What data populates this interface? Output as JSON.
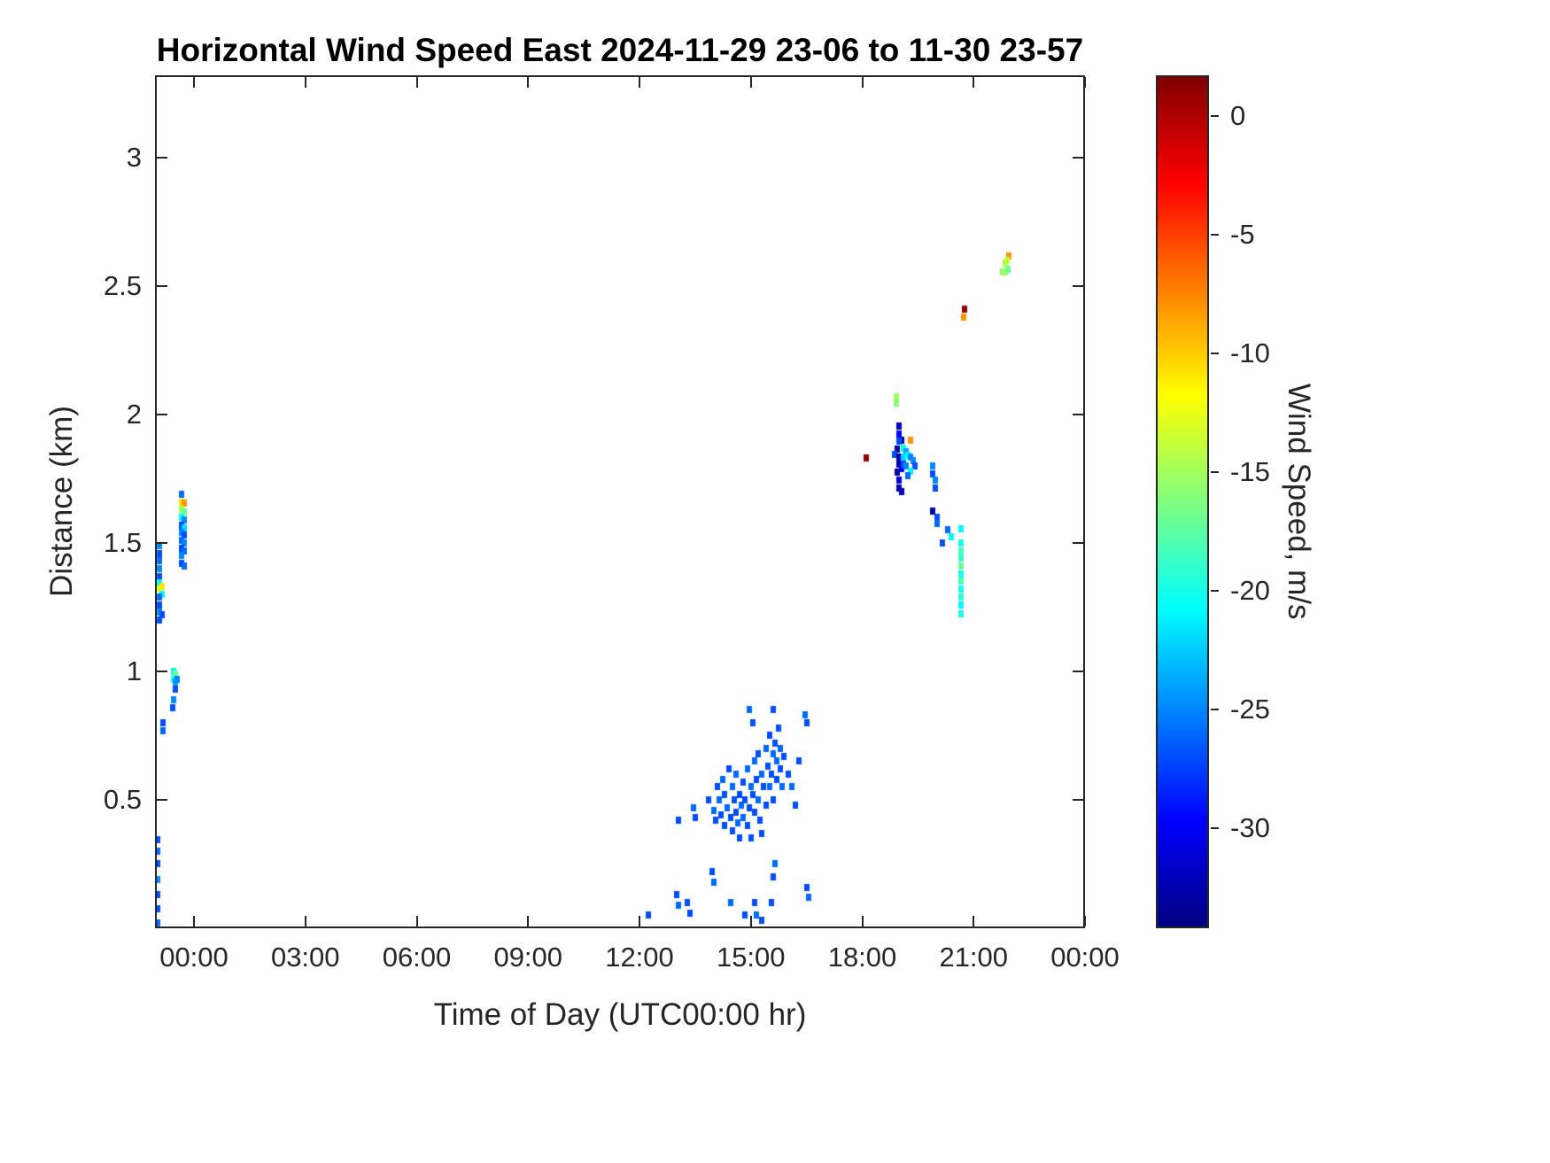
{
  "chart_data": {
    "type": "heatmap",
    "title": "Horizontal Wind Speed East 2024-11-29 23-06 to 11-30 23-57",
    "xlabel": "Time of Day (UTC00:00 hr)",
    "ylabel": "Distance (km)",
    "colorbar_label": "Wind Speed, m/s",
    "grid": false,
    "x_range_hours": [
      -1.05,
      24
    ],
    "y_range_km": [
      0,
      3.32
    ],
    "x_ticks": [
      {
        "hour": 0,
        "label": "00:00"
      },
      {
        "hour": 3,
        "label": "03:00"
      },
      {
        "hour": 6,
        "label": "06:00"
      },
      {
        "hour": 9,
        "label": "09:00"
      },
      {
        "hour": 12,
        "label": "12:00"
      },
      {
        "hour": 15,
        "label": "15:00"
      },
      {
        "hour": 18,
        "label": "18:00"
      },
      {
        "hour": 21,
        "label": "21:00"
      },
      {
        "hour": 24,
        "label": "00:00"
      }
    ],
    "y_ticks": [
      {
        "km": 0.5,
        "label": "0.5"
      },
      {
        "km": 1,
        "label": "1"
      },
      {
        "km": 1.5,
        "label": "1.5"
      },
      {
        "km": 2,
        "label": "2"
      },
      {
        "km": 2.5,
        "label": "2.5"
      },
      {
        "km": 3,
        "label": "3"
      }
    ],
    "colorbar": {
      "colormap": "jet",
      "range_top_to_bottom": [
        1.7,
        -34.2
      ],
      "ticks": [
        {
          "value": 0,
          "label": "0"
        },
        {
          "value": -5,
          "label": "-5"
        },
        {
          "value": -10,
          "label": "-10"
        },
        {
          "value": -15,
          "label": "-15"
        },
        {
          "value": -20,
          "label": "-20"
        },
        {
          "value": -25,
          "label": "-25"
        },
        {
          "value": -30,
          "label": "-30"
        }
      ]
    },
    "points_format": [
      "time_hour",
      "distance_km",
      "wind_speed_ms"
    ],
    "points": [
      [
        -0.93,
        1.49,
        -25
      ],
      [
        -0.93,
        1.46,
        -27
      ],
      [
        -0.93,
        1.43,
        -26
      ],
      [
        -0.93,
        1.4,
        -25
      ],
      [
        -0.93,
        1.37,
        -27
      ],
      [
        -0.93,
        1.345,
        -21
      ],
      [
        -0.93,
        1.32,
        -13
      ],
      [
        -0.86,
        1.33,
        -11
      ],
      [
        -0.86,
        1.3,
        -21
      ],
      [
        -0.93,
        1.29,
        -26
      ],
      [
        -0.93,
        1.26,
        -27
      ],
      [
        -0.93,
        1.23,
        -25
      ],
      [
        -0.93,
        1.2,
        -27
      ],
      [
        -0.86,
        1.22,
        -27
      ],
      [
        -0.97,
        0.345,
        -27
      ],
      [
        -0.97,
        0.3,
        -26
      ],
      [
        -0.97,
        0.25,
        -27
      ],
      [
        -0.97,
        0.19,
        -25
      ],
      [
        -0.97,
        0.13,
        -27
      ],
      [
        -0.97,
        0.075,
        -27
      ],
      [
        -0.97,
        0.02,
        -26
      ],
      [
        -0.83,
        0.8,
        -27
      ],
      [
        -0.83,
        0.77,
        -26
      ],
      [
        -0.57,
        0.86,
        -27
      ],
      [
        -0.55,
        0.89,
        -25
      ],
      [
        -0.55,
        1.0,
        -21
      ],
      [
        -0.5,
        0.99,
        -17
      ],
      [
        -0.55,
        0.97,
        -20
      ],
      [
        -0.5,
        0.96,
        -24
      ],
      [
        -0.45,
        0.97,
        -25
      ],
      [
        -0.5,
        0.93,
        -27
      ],
      [
        -0.33,
        1.69,
        -26
      ],
      [
        -0.33,
        1.66,
        -11
      ],
      [
        -0.26,
        1.655,
        -8
      ],
      [
        -0.33,
        1.63,
        -15
      ],
      [
        -0.26,
        1.62,
        -17
      ],
      [
        -0.33,
        1.6,
        -21
      ],
      [
        -0.26,
        1.59,
        -25
      ],
      [
        -0.33,
        1.57,
        -27
      ],
      [
        -0.26,
        1.56,
        -22
      ],
      [
        -0.33,
        1.54,
        -25
      ],
      [
        -0.26,
        1.53,
        -27
      ],
      [
        -0.33,
        1.51,
        -26
      ],
      [
        -0.26,
        1.5,
        -25
      ],
      [
        -0.33,
        1.48,
        -27
      ],
      [
        -0.26,
        1.47,
        -26
      ],
      [
        -0.33,
        1.45,
        -25
      ],
      [
        -0.33,
        1.42,
        -27
      ],
      [
        -0.26,
        1.41,
        -26
      ],
      [
        12.25,
        0.05,
        -27
      ],
      [
        13.0,
        0.13,
        -27
      ],
      [
        13.05,
        0.09,
        -26
      ],
      [
        13.3,
        0.1,
        -27
      ],
      [
        13.35,
        0.06,
        -27
      ],
      [
        13.95,
        0.22,
        -27
      ],
      [
        14.0,
        0.18,
        -26
      ],
      [
        14.45,
        0.1,
        -26
      ],
      [
        14.85,
        0.05,
        -27
      ],
      [
        15.1,
        0.1,
        -27
      ],
      [
        15.15,
        0.05,
        -26
      ],
      [
        15.3,
        0.03,
        -27
      ],
      [
        15.55,
        0.1,
        -27
      ],
      [
        15.6,
        0.2,
        -27
      ],
      [
        15.65,
        0.25,
        -26
      ],
      [
        16.5,
        0.16,
        -27
      ],
      [
        16.55,
        0.12,
        -26
      ],
      [
        13.05,
        0.42,
        -27
      ],
      [
        13.45,
        0.47,
        -26
      ],
      [
        13.5,
        0.43,
        -27
      ],
      [
        13.85,
        0.5,
        -27
      ],
      [
        14.0,
        0.46,
        -26
      ],
      [
        14.05,
        0.42,
        -27
      ],
      [
        14.1,
        0.55,
        -27
      ],
      [
        14.15,
        0.5,
        -26
      ],
      [
        14.2,
        0.44,
        -27
      ],
      [
        14.25,
        0.58,
        -26
      ],
      [
        14.3,
        0.4,
        -27
      ],
      [
        14.3,
        0.52,
        -27
      ],
      [
        14.35,
        0.47,
        -26
      ],
      [
        14.4,
        0.62,
        -27
      ],
      [
        14.45,
        0.43,
        -27
      ],
      [
        14.5,
        0.55,
        -26
      ],
      [
        14.5,
        0.38,
        -27
      ],
      [
        14.55,
        0.5,
        -27
      ],
      [
        14.6,
        0.6,
        -26
      ],
      [
        14.6,
        0.45,
        -27
      ],
      [
        14.65,
        0.41,
        -26
      ],
      [
        14.7,
        0.52,
        -27
      ],
      [
        14.7,
        0.35,
        -27
      ],
      [
        14.75,
        0.48,
        -26
      ],
      [
        14.8,
        0.57,
        -27
      ],
      [
        14.8,
        0.43,
        -26
      ],
      [
        14.85,
        0.5,
        -27
      ],
      [
        14.9,
        0.62,
        -26
      ],
      [
        14.9,
        0.4,
        -27
      ],
      [
        14.95,
        0.47,
        -27
      ],
      [
        15.0,
        0.55,
        -26
      ],
      [
        15.0,
        0.35,
        -27
      ],
      [
        15.05,
        0.52,
        -27
      ],
      [
        15.05,
        0.8,
        -27
      ],
      [
        15.1,
        0.65,
        -26
      ],
      [
        15.1,
        0.45,
        -27
      ],
      [
        15.15,
        0.58,
        -27
      ],
      [
        15.2,
        0.5,
        -26
      ],
      [
        15.2,
        0.68,
        -27
      ],
      [
        15.25,
        0.42,
        -27
      ],
      [
        15.3,
        0.6,
        -26
      ],
      [
        15.3,
        0.37,
        -27
      ],
      [
        15.35,
        0.55,
        -27
      ],
      [
        15.4,
        0.7,
        -26
      ],
      [
        15.4,
        0.48,
        -27
      ],
      [
        15.45,
        0.63,
        -27
      ],
      [
        15.5,
        0.55,
        -26
      ],
      [
        15.5,
        0.75,
        -27
      ],
      [
        15.55,
        0.6,
        -27
      ],
      [
        15.6,
        0.68,
        -26
      ],
      [
        15.6,
        0.5,
        -27
      ],
      [
        15.65,
        0.72,
        -27
      ],
      [
        15.7,
        0.65,
        -26
      ],
      [
        15.7,
        0.58,
        -27
      ],
      [
        15.75,
        0.78,
        -27
      ],
      [
        15.8,
        0.7,
        -26
      ],
      [
        15.8,
        0.62,
        -27
      ],
      [
        15.85,
        0.55,
        -26
      ],
      [
        15.9,
        0.67,
        -27
      ],
      [
        16.0,
        0.6,
        -27
      ],
      [
        16.1,
        0.55,
        -26
      ],
      [
        16.2,
        0.48,
        -27
      ],
      [
        16.3,
        0.65,
        -27
      ],
      [
        16.45,
        0.83,
        -26
      ],
      [
        16.5,
        0.8,
        -27
      ],
      [
        15.6,
        0.85,
        -27
      ],
      [
        14.95,
        0.85,
        -26
      ],
      [
        18.1,
        1.83,
        1
      ],
      [
        18.92,
        2.07,
        -15
      ],
      [
        18.92,
        2.045,
        -16
      ],
      [
        19.0,
        1.955,
        -32
      ],
      [
        19.0,
        1.925,
        -30
      ],
      [
        19.06,
        1.9,
        -33
      ],
      [
        19.0,
        1.895,
        -27
      ],
      [
        18.94,
        1.865,
        -33
      ],
      [
        19.12,
        1.87,
        -21
      ],
      [
        19.18,
        1.855,
        -24
      ],
      [
        18.88,
        1.845,
        -27
      ],
      [
        19.0,
        1.835,
        -33
      ],
      [
        19.06,
        1.82,
        -30
      ],
      [
        19.12,
        1.835,
        -22
      ],
      [
        19.24,
        1.84,
        -21
      ],
      [
        19.3,
        1.835,
        -25
      ],
      [
        19.0,
        1.805,
        -33
      ],
      [
        19.06,
        1.79,
        -30
      ],
      [
        19.12,
        1.805,
        -27
      ],
      [
        19.18,
        1.8,
        -25
      ],
      [
        18.94,
        1.775,
        -33
      ],
      [
        19.0,
        1.745,
        -31
      ],
      [
        19.0,
        1.715,
        -33
      ],
      [
        19.06,
        1.7,
        -32
      ],
      [
        19.3,
        1.9,
        -8
      ],
      [
        19.36,
        1.82,
        -25
      ],
      [
        19.42,
        1.8,
        -27
      ],
      [
        19.3,
        1.78,
        -21
      ],
      [
        19.24,
        1.76,
        -26
      ],
      [
        19.9,
        1.8,
        -25
      ],
      [
        19.9,
        1.77,
        -27
      ],
      [
        19.96,
        1.745,
        -25
      ],
      [
        19.96,
        1.715,
        -27
      ],
      [
        19.9,
        1.625,
        -33
      ],
      [
        20.02,
        1.6,
        -27
      ],
      [
        20.02,
        1.575,
        -26
      ],
      [
        20.3,
        1.55,
        -26
      ],
      [
        20.4,
        1.525,
        -21
      ],
      [
        20.15,
        1.5,
        -27
      ],
      [
        20.65,
        1.555,
        -21
      ],
      [
        20.65,
        1.5,
        -20
      ],
      [
        20.65,
        1.47,
        -18
      ],
      [
        20.65,
        1.44,
        -19
      ],
      [
        20.65,
        1.41,
        -17
      ],
      [
        20.65,
        1.38,
        -20
      ],
      [
        20.65,
        1.35,
        -18
      ],
      [
        20.65,
        1.32,
        -20
      ],
      [
        20.65,
        1.29,
        -19
      ],
      [
        20.65,
        1.26,
        -21
      ],
      [
        20.65,
        1.225,
        -20
      ],
      [
        20.75,
        2.41,
        1
      ],
      [
        20.72,
        2.38,
        -8
      ],
      [
        21.78,
        2.555,
        -16
      ],
      [
        21.85,
        2.555,
        -15
      ],
      [
        21.92,
        2.565,
        -17
      ],
      [
        21.85,
        2.59,
        -15
      ],
      [
        21.95,
        2.615,
        -8
      ],
      [
        21.9,
        2.6,
        -14
      ]
    ]
  }
}
